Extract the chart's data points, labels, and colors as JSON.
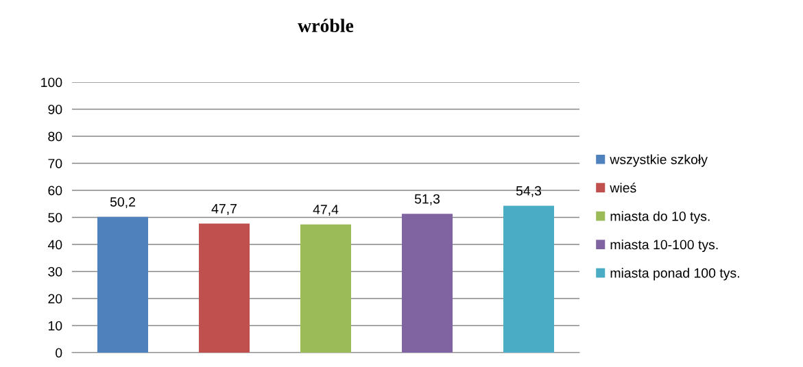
{
  "chart_data": {
    "type": "bar",
    "title": "wróble",
    "categories": [
      null,
      null,
      null,
      null,
      null
    ],
    "series": [
      {
        "name": "wszystkie szkoły",
        "color": "#4f81bd",
        "values": [
          50.2,
          null,
          null,
          null,
          null
        ],
        "value_labels": [
          "50,2",
          null,
          null,
          null,
          null
        ]
      },
      {
        "name": "wieś",
        "color": "#c0504d",
        "values": [
          null,
          47.7,
          null,
          null,
          null
        ],
        "value_labels": [
          null,
          "47,7",
          null,
          null,
          null
        ]
      },
      {
        "name": "miasta do 10 tys.",
        "color": "#9bbb59",
        "values": [
          null,
          null,
          47.4,
          null,
          null
        ],
        "value_labels": [
          null,
          null,
          "47,4",
          null,
          null
        ]
      },
      {
        "name": "miasta 10-100 tys.",
        "color": "#8064a2",
        "values": [
          null,
          null,
          null,
          51.3,
          null
        ],
        "value_labels": [
          null,
          null,
          null,
          "51,3",
          null
        ]
      },
      {
        "name": "miasta ponad 100 tys.",
        "color": "#4bacc6",
        "values": [
          null,
          null,
          null,
          null,
          54.3
        ],
        "value_labels": [
          null,
          null,
          null,
          null,
          "54,3"
        ]
      }
    ],
    "ylim": [
      0,
      100
    ],
    "yticks": [
      0,
      10,
      20,
      30,
      40,
      50,
      60,
      70,
      80,
      90,
      100
    ],
    "grid": "y",
    "legend": "right"
  }
}
